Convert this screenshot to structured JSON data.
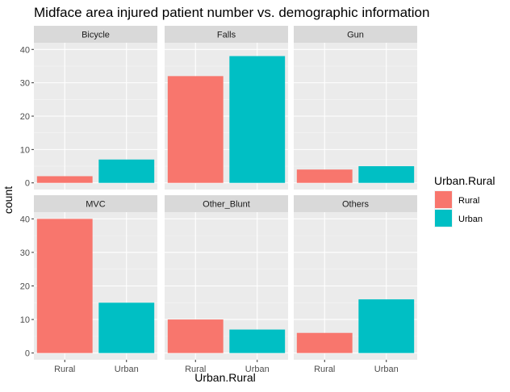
{
  "chart_data": {
    "type": "bar",
    "title": "Midface area injured patient number vs. demographic information",
    "xlabel": "Urban.Rural",
    "ylabel": "count",
    "categories": [
      "Rural",
      "Urban"
    ],
    "ylim": [
      0,
      40
    ],
    "yticks": [
      0,
      10,
      20,
      30,
      40
    ],
    "grid": true,
    "legend": {
      "title": "Urban.Rural",
      "position": "right",
      "entries": [
        {
          "label": "Rural",
          "color": "#F8766D"
        },
        {
          "label": "Urban",
          "color": "#00BFC4"
        }
      ]
    },
    "facets": [
      {
        "label": "Bicycle",
        "values": [
          2,
          7
        ]
      },
      {
        "label": "Falls",
        "values": [
          32,
          38
        ]
      },
      {
        "label": "Gun",
        "values": [
          4,
          5
        ]
      },
      {
        "label": "MVC",
        "values": [
          40,
          15
        ]
      },
      {
        "label": "Other_Blunt",
        "values": [
          10,
          7
        ]
      },
      {
        "label": "Others",
        "values": [
          6,
          16
        ]
      }
    ]
  }
}
